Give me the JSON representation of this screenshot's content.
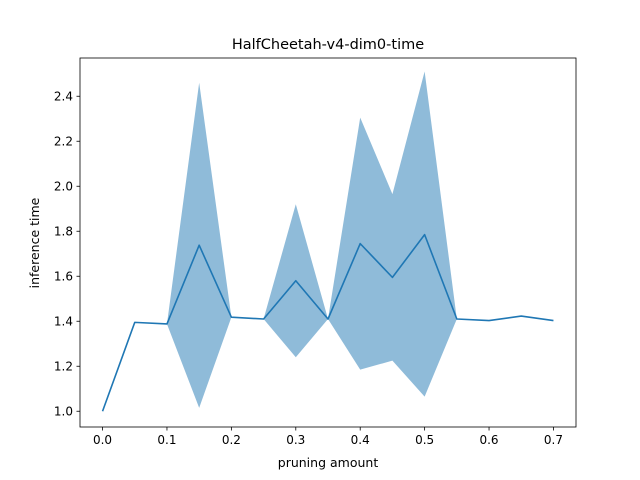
{
  "chart_data": {
    "type": "line",
    "title": "HalfCheetah-v4-dim0-time",
    "xlabel": "pruning amount",
    "ylabel": "inference time",
    "xlim": [
      -0.035,
      0.735
    ],
    "ylim": [
      0.93,
      2.57
    ],
    "x_ticks": [
      0.0,
      0.1,
      0.2,
      0.3,
      0.4,
      0.5,
      0.6,
      0.7
    ],
    "x_tick_labels": [
      "0.0",
      "0.1",
      "0.2",
      "0.3",
      "0.4",
      "0.5",
      "0.6",
      "0.7"
    ],
    "y_ticks": [
      1.0,
      1.2,
      1.4,
      1.6,
      1.8,
      2.0,
      2.2,
      2.4
    ],
    "y_tick_labels": [
      "1.0",
      "1.2",
      "1.4",
      "1.6",
      "1.8",
      "2.0",
      "2.2",
      "2.4"
    ],
    "grid": false,
    "series": [
      {
        "x": [
          0.0,
          0.05,
          0.1,
          0.15,
          0.2,
          0.25,
          0.3,
          0.35,
          0.4,
          0.45,
          0.5,
          0.55,
          0.6,
          0.65,
          0.7
        ],
        "y": [
          1.0,
          1.395,
          1.388,
          1.738,
          1.418,
          1.41,
          1.58,
          1.41,
          1.745,
          1.595,
          1.785,
          1.41,
          1.403,
          1.423,
          1.403
        ],
        "upper": [
          1.0,
          1.395,
          1.388,
          2.46,
          1.418,
          1.41,
          1.92,
          1.41,
          2.305,
          1.965,
          2.51,
          1.41,
          1.403,
          1.423,
          1.403
        ],
        "lower": [
          1.0,
          1.395,
          1.388,
          1.015,
          1.418,
          1.41,
          1.24,
          1.41,
          1.185,
          1.225,
          1.065,
          1.41,
          1.403,
          1.423,
          1.403
        ]
      }
    ],
    "colors": {
      "line": "#1f77b4",
      "band": "#1f77b4",
      "band_opacity": 0.5,
      "axes": "#000000"
    }
  }
}
